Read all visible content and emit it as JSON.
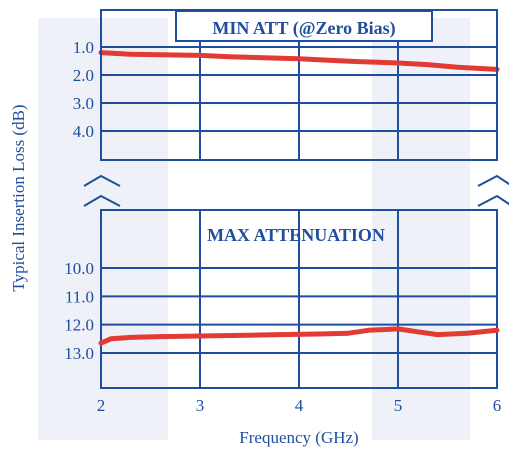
{
  "colors": {
    "axis": "#1f4e9e",
    "line": "#e23a34",
    "text": "#1f4e9e",
    "watermark": "#eef1f7"
  },
  "chart_data": [
    {
      "type": "line",
      "panel": "top",
      "title": "MIN ATT (@Zero Bias)",
      "ylabel": "Typical Insertion Loss (dB)",
      "y_tick_labels": [
        "1.0",
        "2.0",
        "3.0",
        "4.0"
      ],
      "ylim": [
        0.55,
        4.55
      ],
      "y_reversed": true,
      "x_ticks": [
        2,
        3,
        4,
        5,
        6
      ],
      "xlim": [
        2,
        6
      ],
      "grid": true,
      "series": [
        {
          "x": [
            2.0,
            2.3,
            2.6,
            3.0,
            3.3,
            3.6,
            4.0,
            4.3,
            4.6,
            5.0,
            5.3,
            5.6,
            6.0
          ],
          "y": [
            1.2,
            1.26,
            1.28,
            1.3,
            1.35,
            1.38,
            1.42,
            1.47,
            1.52,
            1.57,
            1.63,
            1.72,
            1.8
          ]
        }
      ]
    },
    {
      "type": "line",
      "panel": "bottom",
      "title": "MAX ATTENUATION",
      "y_tick_labels": [
        "10.0",
        "11.0",
        "12.0",
        "13.0"
      ],
      "ylim": [
        9.5,
        13.5
      ],
      "y_reversed": true,
      "x_ticks": [
        2,
        3,
        4,
        5,
        6
      ],
      "xlim": [
        2,
        6
      ],
      "xlabel": "Frequency (GHz)",
      "grid": true,
      "series": [
        {
          "x": [
            2.0,
            2.1,
            2.3,
            2.6,
            3.0,
            3.4,
            3.8,
            4.2,
            4.5,
            4.7,
            5.0,
            5.2,
            5.4,
            5.7,
            6.0
          ],
          "y": [
            12.65,
            12.5,
            12.45,
            12.42,
            12.4,
            12.38,
            12.35,
            12.33,
            12.3,
            12.2,
            12.15,
            12.25,
            12.35,
            12.3,
            12.2
          ]
        }
      ]
    }
  ]
}
